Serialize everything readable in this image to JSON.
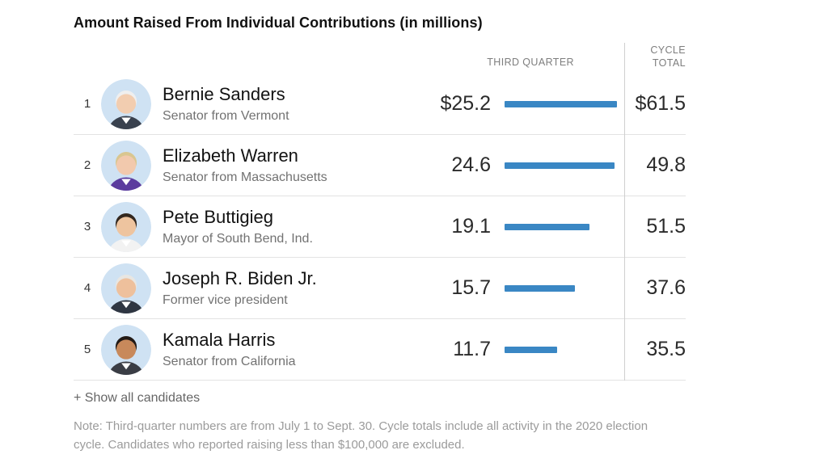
{
  "title": "Amount Raised From Individual Contributions (in millions)",
  "columns": {
    "third_quarter": "THIRD QUARTER",
    "cycle_total": "CYCLE\nTOTAL"
  },
  "colors": {
    "bar": "#3a87c4",
    "divider": "#cfcfcf",
    "row_border": "#e3e3e3"
  },
  "rows": [
    {
      "rank": "1",
      "name": "Bernie Sanders",
      "subtitle": "Senator from Vermont",
      "q3_display": "$25.2",
      "q3_value": 25.2,
      "cycle_display": "$61.5",
      "avatar": {
        "bg": "#cfe2f3",
        "skin": "#f2cdb0",
        "hair": "#efefef",
        "suit": "#39414e"
      }
    },
    {
      "rank": "2",
      "name": "Elizabeth Warren",
      "subtitle": "Senator from Massachusetts",
      "q3_display": "24.6",
      "q3_value": 24.6,
      "cycle_display": "49.8",
      "avatar": {
        "bg": "#cfe2f3",
        "skin": "#f2c9ad",
        "hair": "#d9c690",
        "suit": "#5b3c9e"
      }
    },
    {
      "rank": "3",
      "name": "Pete Buttigieg",
      "subtitle": "Mayor of South Bend, Ind.",
      "q3_display": "19.1",
      "q3_value": 19.1,
      "cycle_display": "51.5",
      "avatar": {
        "bg": "#cfe2f3",
        "skin": "#eec49f",
        "hair": "#33271e",
        "suit": "#f2f2f2"
      }
    },
    {
      "rank": "4",
      "name": "Joseph R. Biden Jr.",
      "subtitle": "Former vice president",
      "q3_display": "15.7",
      "q3_value": 15.7,
      "cycle_display": "37.6",
      "avatar": {
        "bg": "#cfe2f3",
        "skin": "#eec09c",
        "hair": "#e8e6e2",
        "suit": "#2f3642"
      }
    },
    {
      "rank": "5",
      "name": "Kamala Harris",
      "subtitle": "Senator from California",
      "q3_display": "11.7",
      "q3_value": 11.7,
      "cycle_display": "35.5",
      "avatar": {
        "bg": "#cfe2f3",
        "skin": "#c8895b",
        "hair": "#221a16",
        "suit": "#3a3d45"
      }
    }
  ],
  "footer": {
    "show_all": "+ Show all candidates",
    "note": "Note: Third-quarter numbers are from July 1 to Sept. 30. Cycle totals include all activity in the 2020 election cycle. Candidates who reported raising less than $100,000 are excluded."
  },
  "chart_data": {
    "type": "bar",
    "title": "Amount Raised From Individual Contributions (in millions)",
    "categories": [
      "Bernie Sanders",
      "Elizabeth Warren",
      "Pete Buttigieg",
      "Joseph R. Biden Jr.",
      "Kamala Harris"
    ],
    "series": [
      {
        "name": "Third quarter",
        "values": [
          25.2,
          24.6,
          19.1,
          15.7,
          11.7
        ]
      },
      {
        "name": "Cycle total",
        "values": [
          61.5,
          49.8,
          51.5,
          37.6,
          35.5
        ]
      }
    ],
    "orientation": "horizontal",
    "xlabel": "",
    "ylabel": "",
    "xlim": [
      0,
      25.2
    ],
    "grid": false,
    "legend_position": "column-headers",
    "annotations": [
      "Note: Third-quarter numbers are from July 1 to Sept. 30. Cycle totals include all activity in the 2020 election cycle. Candidates who reported raising less than $100,000 are excluded."
    ]
  }
}
